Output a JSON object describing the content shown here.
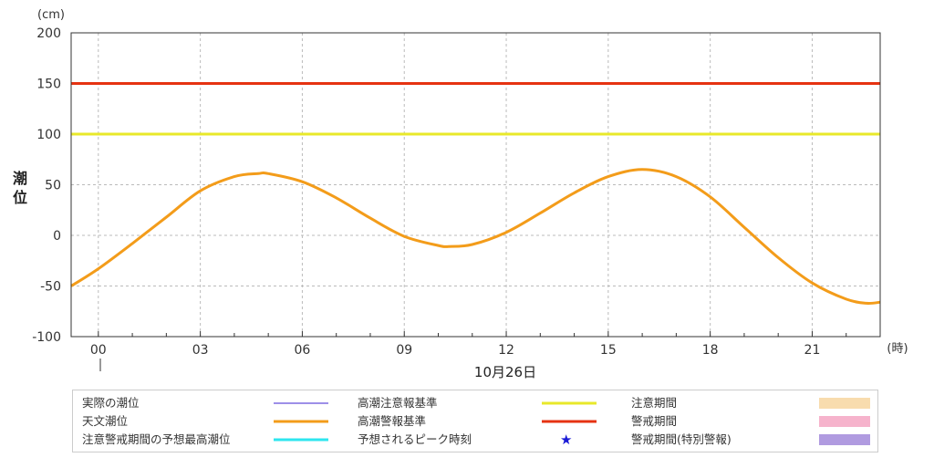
{
  "chart_data": {
    "type": "line",
    "ylabel": "潮位",
    "yunit": "(cm)",
    "xunit": "(時)",
    "date_label": "10月26日",
    "ylim": [
      -100,
      200
    ],
    "yticks": [
      200,
      150,
      100,
      50,
      0,
      -50,
      -100
    ],
    "xticks": [
      "00",
      "03",
      "06",
      "09",
      "12",
      "15",
      "18",
      "21"
    ],
    "xlim_hours": [
      -0.8,
      23.0
    ],
    "grid": true,
    "thresholds": [
      {
        "name": "高潮注意報基準",
        "value": 100,
        "color": "#e8e82a"
      },
      {
        "name": "高潮警報基準",
        "value": 150,
        "color": "#e63312"
      }
    ],
    "series": [
      {
        "name": "天文潮位",
        "color": "#f39c1a",
        "x": [
          -0.8,
          0,
          1,
          2,
          3,
          4,
          4.7,
          5,
          6,
          7,
          8,
          9,
          10,
          10.3,
          11,
          12,
          13,
          14,
          15,
          16,
          17,
          18,
          19,
          20,
          21,
          22,
          22.6,
          23
        ],
        "values": [
          -50,
          -33,
          -8,
          18,
          44,
          58,
          61,
          61,
          53,
          37,
          17,
          -1,
          -10,
          -11,
          -9,
          3,
          22,
          42,
          58,
          65,
          58,
          38,
          8,
          -22,
          -47,
          -63,
          -67,
          -66
        ]
      }
    ]
  },
  "legend": {
    "items": [
      {
        "label": "実際の潮位",
        "type": "line",
        "color": "#3b1fd1"
      },
      {
        "label": "天文潮位",
        "type": "thickline",
        "color": "#f39c1a"
      },
      {
        "label": "注意警戒期間の予想最高潮位",
        "type": "thickline",
        "color": "#2ee6ef"
      },
      {
        "label": "高潮注意報基準",
        "type": "thickline",
        "color": "#e8e82a"
      },
      {
        "label": "高潮警報基準",
        "type": "thickline",
        "color": "#e63312"
      },
      {
        "label": "予想されるピーク時刻",
        "type": "star",
        "color": "#1a1ad6",
        "glyph": "★"
      },
      {
        "label": "注意期間",
        "type": "box",
        "color": "#f8dcae"
      },
      {
        "label": "警戒期間",
        "type": "box",
        "color": "#f6b3cc"
      },
      {
        "label": "警戒期間(特別警報)",
        "type": "box",
        "color": "#b09be0"
      }
    ]
  }
}
